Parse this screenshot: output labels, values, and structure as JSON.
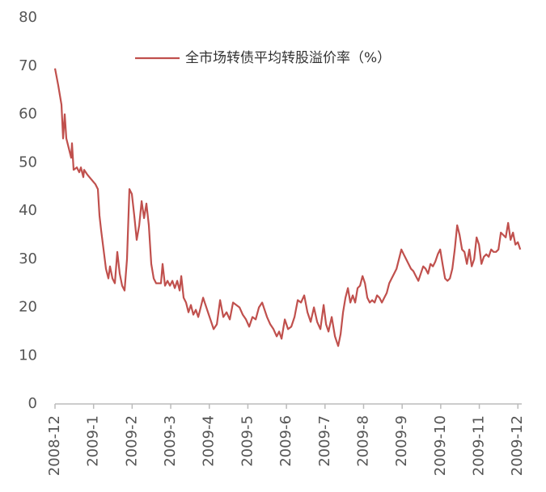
{
  "chart_data": {
    "type": "line",
    "x": [
      0,
      0.084,
      0.168,
      0.21,
      0.252,
      0.294,
      0.357,
      0.42,
      0.441,
      0.483,
      0.566,
      0.629,
      0.671,
      0.734,
      0.755,
      0.839,
      0.944,
      1.049,
      1.112,
      1.154,
      1.196,
      1.259,
      1.322,
      1.385,
      1.427,
      1.489,
      1.552,
      1.615,
      1.678,
      1.741,
      1.804,
      1.867,
      1.93,
      1.993,
      2.056,
      2.119,
      2.182,
      2.245,
      2.308,
      2.37,
      2.433,
      2.496,
      2.559,
      2.622,
      2.685,
      2.748,
      2.79,
      2.853,
      2.916,
      2.979,
      3.042,
      3.105,
      3.168,
      3.231,
      3.273,
      3.335,
      3.398,
      3.461,
      3.524,
      3.587,
      3.65,
      3.713,
      3.776,
      3.839,
      3.902,
      3.965,
      4.028,
      4.112,
      4.196,
      4.28,
      4.363,
      4.447,
      4.531,
      4.615,
      4.699,
      4.783,
      4.867,
      4.951,
      5.035,
      5.119,
      5.203,
      5.286,
      5.37,
      5.433,
      5.496,
      5.58,
      5.664,
      5.748,
      5.811,
      5.874,
      5.958,
      6.042,
      6.126,
      6.209,
      6.293,
      6.377,
      6.461,
      6.545,
      6.629,
      6.713,
      6.797,
      6.881,
      6.965,
      7.027,
      7.09,
      7.174,
      7.258,
      7.342,
      7.405,
      7.468,
      7.531,
      7.594,
      7.657,
      7.72,
      7.783,
      7.846,
      7.909,
      7.972,
      8.035,
      8.097,
      8.16,
      8.223,
      8.286,
      8.349,
      8.412,
      8.475,
      8.538,
      8.601,
      8.664,
      8.727,
      8.79,
      8.853,
      8.916,
      8.979,
      9.041,
      9.104,
      9.167,
      9.23,
      9.293,
      9.356,
      9.419,
      9.482,
      9.545,
      9.608,
      9.671,
      9.734,
      9.797,
      9.86,
      9.923,
      9.986,
      10.048,
      10.111,
      10.174,
      10.237,
      10.3,
      10.363,
      10.426,
      10.489,
      10.552,
      10.615,
      10.678,
      10.741,
      10.804,
      10.867,
      10.93,
      10.993,
      11.055,
      11.118,
      11.181,
      11.244,
      11.307,
      11.37,
      11.433,
      11.496,
      11.559,
      11.622,
      11.685,
      11.748,
      11.811,
      11.874,
      11.937,
      12.0,
      12.063
    ],
    "series": [
      {
        "name": "全市场转债平均转股溢价率（%）",
        "color": "#c0504d",
        "values": [
          69.5,
          66,
          62,
          55,
          60,
          55,
          53,
          51,
          54,
          48.5,
          49,
          48,
          49,
          47,
          48.5,
          47.5,
          46.5,
          45.5,
          44.5,
          39,
          36,
          32,
          28,
          26,
          28.5,
          26,
          25,
          31.5,
          27,
          24.5,
          23.5,
          30,
          44.5,
          43.5,
          39,
          34,
          37,
          42,
          38.5,
          41.5,
          37,
          29,
          26,
          25,
          25,
          25,
          29,
          24.5,
          25.5,
          24.5,
          25.5,
          24,
          25.5,
          23.5,
          26.5,
          22,
          21,
          19,
          20.5,
          18.5,
          19.5,
          18,
          20,
          22,
          20.5,
          19,
          17.5,
          15.5,
          16.5,
          21.5,
          18,
          19,
          17.5,
          21,
          20.5,
          20,
          18.5,
          17.5,
          16,
          18,
          17.5,
          20,
          21,
          19.5,
          18,
          16.5,
          15.5,
          14,
          15,
          13.5,
          17.5,
          15.5,
          16,
          18,
          21.5,
          21,
          22.5,
          19,
          17,
          20,
          17,
          15.5,
          20.5,
          16.5,
          15,
          18,
          14,
          12,
          14.5,
          19,
          22,
          24,
          21,
          22.5,
          21,
          24,
          24.5,
          26.5,
          25,
          22,
          21,
          21.5,
          21,
          22.5,
          22,
          21,
          22,
          23,
          25,
          26,
          27,
          28,
          30,
          32,
          31,
          30,
          29,
          28,
          27.5,
          26.5,
          25.5,
          27,
          28.5,
          28,
          27,
          29,
          28.5,
          29.5,
          31,
          32,
          29,
          26,
          25.5,
          26,
          28,
          32,
          37,
          35,
          32,
          31.5,
          29,
          32,
          28.5,
          30,
          34.5,
          33,
          29,
          30.5,
          31,
          30.5,
          32,
          31.5,
          31.5,
          32,
          35.5,
          35,
          34.5,
          37.5,
          34,
          35.5,
          33,
          33.5,
          32
        ]
      }
    ],
    "xlim": [
      0,
      12.1
    ],
    "xticks": [
      {
        "value": 0,
        "label": "2008-12"
      },
      {
        "value": 1,
        "label": "2009-1"
      },
      {
        "value": 2,
        "label": "2009-2"
      },
      {
        "value": 3,
        "label": "2009-3"
      },
      {
        "value": 4,
        "label": "2009-4"
      },
      {
        "value": 5,
        "label": "2009-5"
      },
      {
        "value": 6,
        "label": "2009-6"
      },
      {
        "value": 7,
        "label": "2009-7"
      },
      {
        "value": 8,
        "label": "2009-8"
      },
      {
        "value": 9,
        "label": "2009-9"
      },
      {
        "value": 10,
        "label": "2009-10"
      },
      {
        "value": 11,
        "label": "2009-11"
      },
      {
        "value": 12,
        "label": "2009-12"
      }
    ],
    "ylim": [
      0,
      80
    ],
    "yticks": [
      0,
      10,
      20,
      30,
      40,
      50,
      60,
      70,
      80
    ],
    "legend": "top",
    "grid": false
  }
}
